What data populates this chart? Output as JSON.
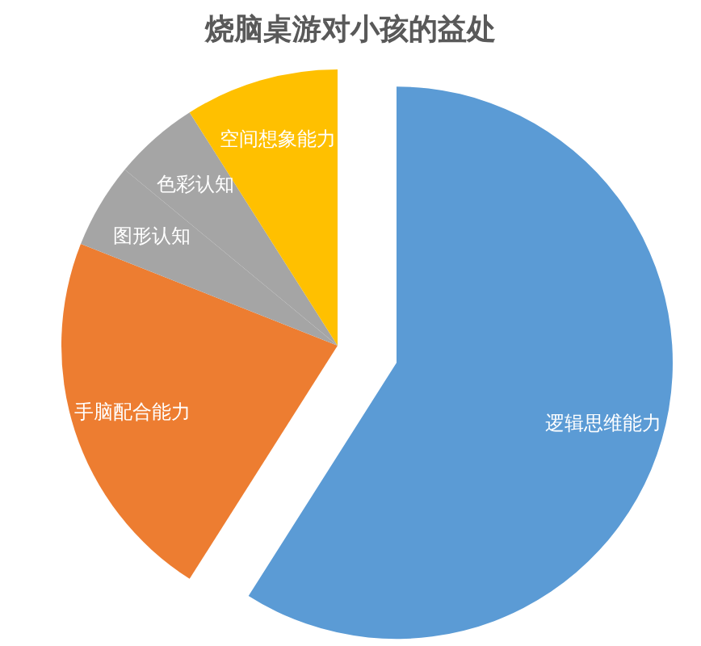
{
  "chart_data": {
    "type": "pie",
    "title": "烧脑桌游对小孩的益处",
    "categories": [
      "逻辑思维能力",
      "手脑配合能力",
      "图形认知",
      "色彩认知",
      "空间想象能力"
    ],
    "values": [
      59,
      22,
      5,
      5,
      9
    ],
    "colors": [
      "#5b9bd5",
      "#ed7d31",
      "#a5a5a5",
      "#a5a5a5",
      "#ffc000"
    ]
  }
}
